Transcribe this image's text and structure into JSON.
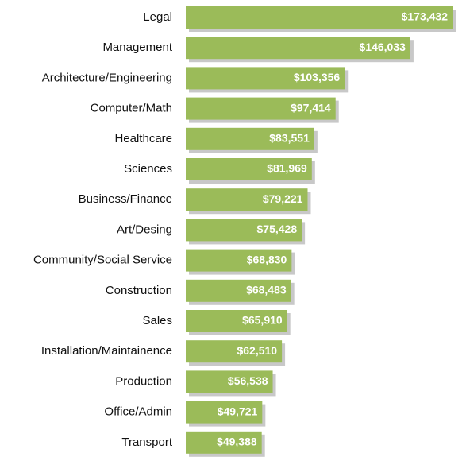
{
  "chart_data": {
    "type": "bar",
    "orientation": "horizontal",
    "color": "#9bbb59",
    "categories": [
      "Legal",
      "Management",
      "Architecture/Engineering",
      "Computer/Math",
      "Healthcare",
      "Sciences",
      "Business/Finance",
      "Art/Desing",
      "Community/Social Service",
      "Construction",
      "Sales",
      "Installation/Maintainence",
      "Production",
      "Office/Admin",
      "Transport"
    ],
    "values": [
      173432,
      146033,
      103356,
      97414,
      83551,
      81969,
      79221,
      75428,
      68830,
      68483,
      65910,
      62510,
      56538,
      49721,
      49388
    ],
    "value_labels": [
      "$173,432",
      "$146,033",
      "$103,356",
      "$97,414",
      "$83,551",
      "$81,969",
      "$79,221",
      "$75,428",
      "$68,830",
      "$68,483",
      "$65,910",
      "$62,510",
      "$56,538",
      "$49,721",
      "$49,388"
    ]
  }
}
